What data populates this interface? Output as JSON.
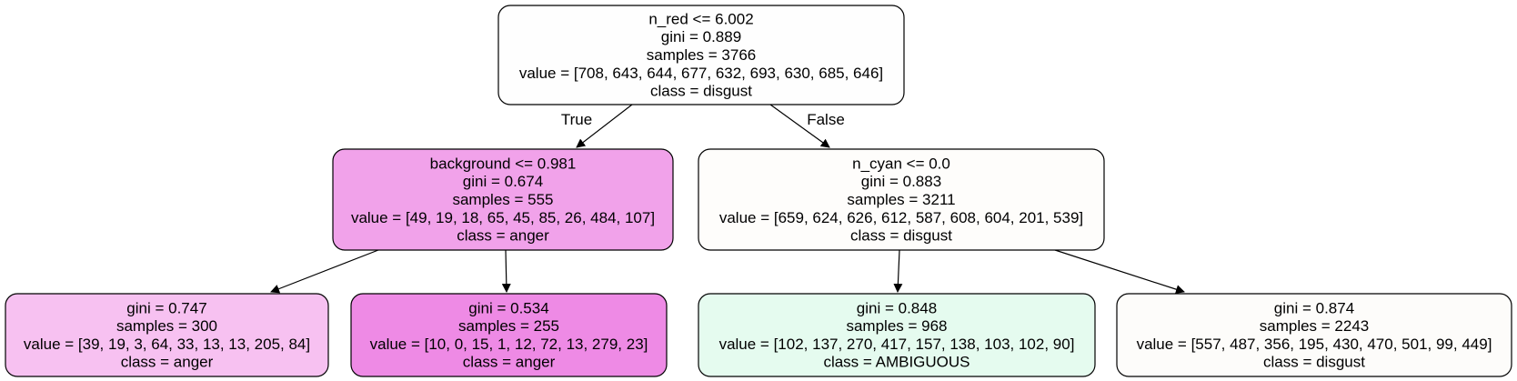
{
  "tree": {
    "nodes": [
      {
        "id": "root",
        "fill": "#fefefe",
        "lines": [
          "n_red <= 6.002",
          "gini = 0.889",
          "samples = 3766",
          "value = [708, 643, 644, 677, 632, 693, 630, 685, 646]",
          "class = disgust"
        ]
      },
      {
        "id": "n1",
        "fill": "#f1a2ea",
        "lines": [
          "background <= 0.981",
          "gini = 0.674",
          "samples = 555",
          "value = [49, 19, 18, 65, 45, 85, 26, 484, 107]",
          "class = anger"
        ]
      },
      {
        "id": "n2",
        "fill": "#fefdfb",
        "lines": [
          "n_cyan <= 0.0",
          "gini = 0.883",
          "samples = 3211",
          "value = [659, 624, 626, 612, 587, 608, 604, 201, 539]",
          "class = disgust"
        ]
      },
      {
        "id": "n3",
        "fill": "#f7c1f1",
        "lines": [
          "gini = 0.747",
          "samples = 300",
          "value = [39, 19, 3, 64, 33, 13, 13, 205, 84]",
          "class = anger"
        ]
      },
      {
        "id": "n4",
        "fill": "#ee8ae5",
        "lines": [
          "gini = 0.534",
          "samples = 255",
          "value = [10, 0, 15, 1, 12, 72, 13, 279, 23]",
          "class = anger"
        ]
      },
      {
        "id": "n5",
        "fill": "#e5fbef",
        "lines": [
          "gini = 0.848",
          "samples = 968",
          "value = [102, 137, 270, 417, 157, 138, 103, 102, 90]",
          "class = AMBIGUOUS"
        ]
      },
      {
        "id": "n6",
        "fill": "#fdfcfa",
        "lines": [
          "gini = 0.874",
          "samples = 2243",
          "value = [557, 487, 356, 195, 430, 470, 501, 99, 449]",
          "class = disgust"
        ]
      }
    ],
    "edges": [
      {
        "from": "root",
        "to": "n1",
        "label": "True"
      },
      {
        "from": "root",
        "to": "n2",
        "label": "False"
      },
      {
        "from": "n1",
        "to": "n3",
        "label": ""
      },
      {
        "from": "n1",
        "to": "n4",
        "label": ""
      },
      {
        "from": "n2",
        "to": "n5",
        "label": ""
      },
      {
        "from": "n2",
        "to": "n6",
        "label": ""
      }
    ]
  }
}
